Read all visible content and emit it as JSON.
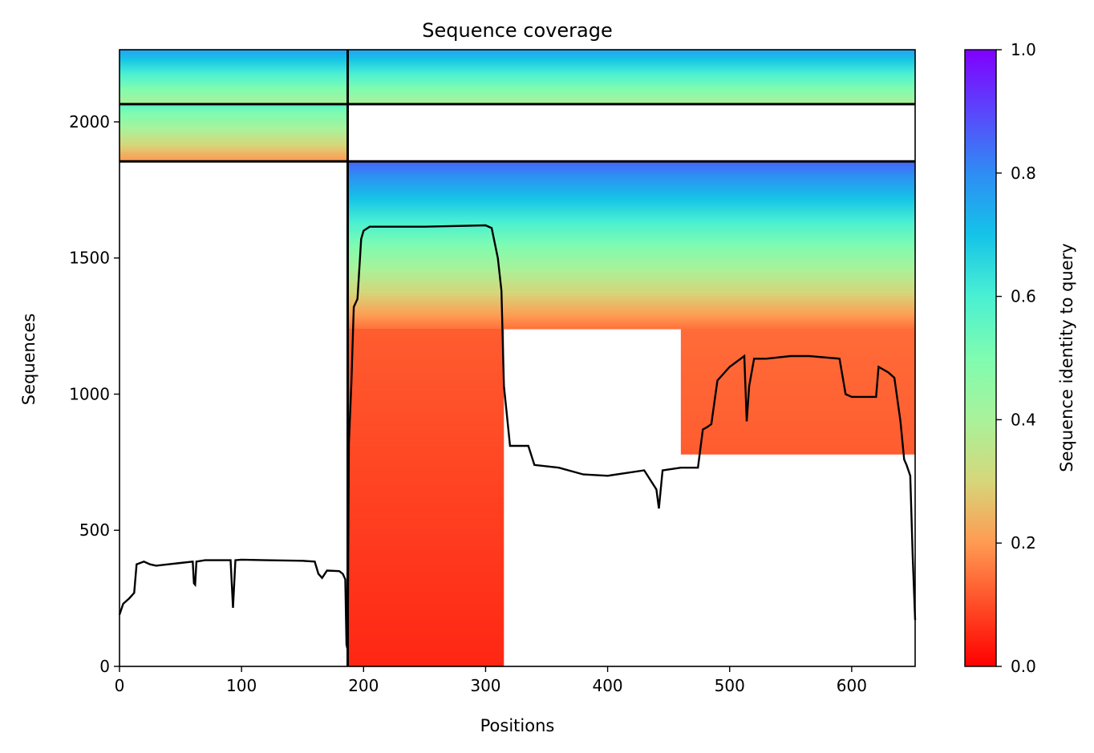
{
  "chart_data": {
    "type": "heatmap",
    "title": "Sequence coverage",
    "xlabel": "Positions",
    "ylabel": "Sequences",
    "xlim": [
      0,
      652
    ],
    "ylim": [
      0,
      2265
    ],
    "x_ticks": [
      0,
      100,
      200,
      300,
      400,
      500,
      600
    ],
    "y_ticks": [
      0,
      500,
      1000,
      1500,
      2000
    ],
    "colorbar": {
      "label": "Sequence identity to query",
      "colormap": "rainbow_r",
      "range": [
        0,
        1
      ],
      "ticks": [
        0.0,
        0.2,
        0.4,
        0.6,
        0.8,
        1.0
      ],
      "tick_labels": [
        "0.0",
        "0.2",
        "0.4",
        "0.6",
        "0.8",
        "1.0"
      ]
    },
    "block_divider_x": 187,
    "block_divider_y": [
      1855,
      2065
    ],
    "coverage_blocks": [
      {
        "x": [
          0,
          187
        ],
        "y": [
          2065,
          2265
        ],
        "identity": [
          0.4,
          0.75
        ]
      },
      {
        "x": [
          187,
          652
        ],
        "y": [
          2065,
          2265
        ],
        "identity": [
          0.4,
          0.75
        ]
      },
      {
        "x": [
          0,
          187
        ],
        "y": [
          1855,
          2065
        ],
        "identity": [
          0.2,
          0.55
        ]
      },
      {
        "x": [
          187,
          652
        ],
        "y": [
          1240,
          1855
        ],
        "identity": [
          0.15,
          0.85
        ]
      },
      {
        "x": [
          187,
          315
        ],
        "y": [
          0,
          1240
        ],
        "identity": [
          0.05,
          0.12
        ]
      },
      {
        "x": [
          460,
          652
        ],
        "y": [
          780,
          1240
        ],
        "identity": [
          0.12,
          0.14
        ]
      }
    ],
    "coverage_line": {
      "x": [
        0,
        3,
        8,
        12,
        14,
        20,
        25,
        30,
        40,
        50,
        60,
        61,
        62,
        63,
        70,
        80,
        91,
        93,
        95,
        100,
        120,
        150,
        160,
        163,
        166,
        170,
        180,
        183,
        185,
        186,
        187,
        188,
        190,
        192,
        195,
        198,
        200,
        205,
        215,
        250,
        300,
        305,
        310,
        313,
        315,
        320,
        335,
        340,
        360,
        380,
        400,
        430,
        440,
        442,
        445,
        460,
        474,
        478,
        482,
        485,
        490,
        500,
        512,
        514,
        516,
        520,
        530,
        550,
        565,
        590,
        595,
        600,
        620,
        622,
        630,
        635,
        640,
        643,
        645,
        648,
        650,
        652
      ],
      "y": [
        190,
        230,
        250,
        270,
        375,
        385,
        375,
        370,
        375,
        380,
        385,
        305,
        300,
        385,
        390,
        390,
        390,
        215,
        390,
        392,
        390,
        388,
        385,
        340,
        325,
        352,
        350,
        340,
        320,
        80,
        60,
        820,
        1040,
        1320,
        1350,
        1570,
        1600,
        1615,
        1615,
        1615,
        1620,
        1610,
        1500,
        1380,
        1030,
        810,
        810,
        740,
        730,
        705,
        700,
        720,
        650,
        580,
        720,
        730,
        730,
        870,
        880,
        890,
        1050,
        1100,
        1140,
        900,
        1030,
        1130,
        1130,
        1140,
        1140,
        1130,
        1000,
        990,
        990,
        1100,
        1080,
        1060,
        900,
        760,
        740,
        700,
        400,
        170
      ]
    }
  }
}
